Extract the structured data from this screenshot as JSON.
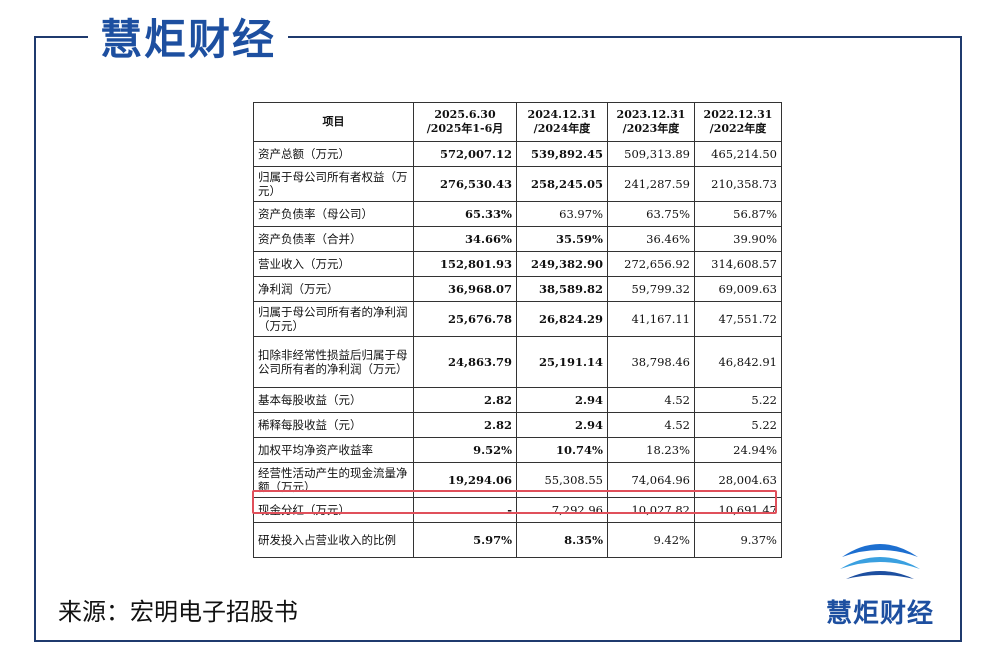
{
  "brand": {
    "name": "慧炬财经",
    "color": "#1d4fa0"
  },
  "source": "来源：宏明电子招股书",
  "table": {
    "headers": [
      "项目",
      "2025.6.30\n/2025年1-6月",
      "2024.12.31\n/2024年度",
      "2023.12.31\n/2023年度",
      "2022.12.31\n/2022年度"
    ],
    "rows": [
      {
        "label": "资产总额（万元）",
        "values": [
          "572,007.12",
          "539,892.45",
          "509,313.89",
          "465,214.50"
        ]
      },
      {
        "label": "归属于母公司所有者权益（万元）",
        "values": [
          "276,530.43",
          "258,245.05",
          "241,287.59",
          "210,358.73"
        ]
      },
      {
        "label": "资产负债率（母公司）",
        "values": [
          "65.33%",
          "63.97%",
          "63.75%",
          "56.87%"
        ]
      },
      {
        "label": "资产负债率（合并）",
        "values": [
          "34.66%",
          "35.59%",
          "36.46%",
          "39.90%"
        ]
      },
      {
        "label": "营业收入（万元）",
        "values": [
          "152,801.93",
          "249,382.90",
          "272,656.92",
          "314,608.57"
        ]
      },
      {
        "label": "净利润（万元）",
        "values": [
          "36,968.07",
          "38,589.82",
          "59,799.32",
          "69,009.63"
        ]
      },
      {
        "label": "归属于母公司所有者的净利润（万元）",
        "values": [
          "25,676.78",
          "26,824.29",
          "41,167.11",
          "47,551.72"
        ]
      },
      {
        "label": "扣除非经常性损益后归属于母公司所有者的净利润（万元）",
        "values": [
          "24,863.79",
          "25,191.14",
          "38,798.46",
          "46,842.91"
        ]
      },
      {
        "label": "基本每股收益（元）",
        "values": [
          "2.82",
          "2.94",
          "4.52",
          "5.22"
        ]
      },
      {
        "label": "稀释每股收益（元）",
        "values": [
          "2.82",
          "2.94",
          "4.52",
          "5.22"
        ]
      },
      {
        "label": "加权平均净资产收益率",
        "values": [
          "9.52%",
          "10.74%",
          "18.23%",
          "24.94%"
        ]
      },
      {
        "label": "经营性活动产生的现金流量净额（万元）",
        "values": [
          "19,294.06",
          "55,308.55",
          "74,064.96",
          "28,004.63"
        ]
      },
      {
        "label": "现金分红（万元）",
        "values": [
          "-",
          "7,292.96",
          "10,027.82",
          "10,691.47"
        ]
      },
      {
        "label": "研发投入占营业收入的比例",
        "values": [
          "5.97%",
          "8.35%",
          "9.42%",
          "9.37%"
        ]
      }
    ]
  }
}
